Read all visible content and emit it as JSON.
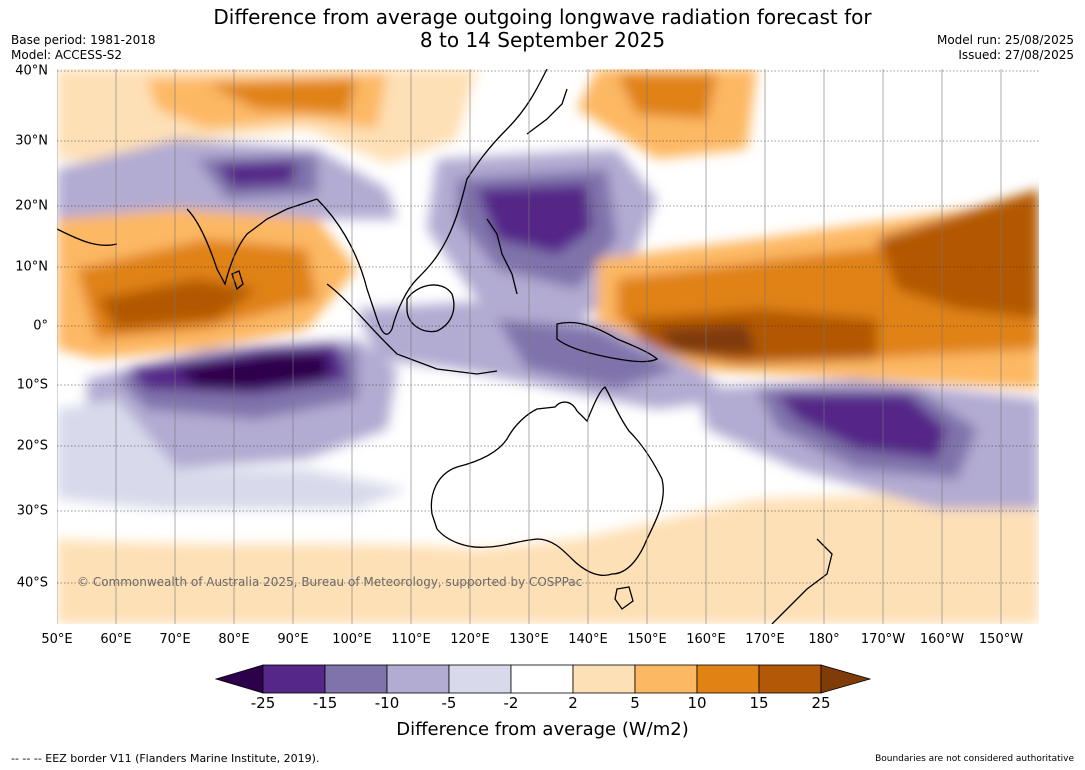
{
  "header": {
    "title_line1": "Difference from average outgoing longwave radiation forecast for",
    "title_line2": "8 to 14 September 2025",
    "base_period": "Base period: 1981-2018",
    "model": "Model: ACCESS-S2",
    "model_run": "Model run: 25/08/2025",
    "issued": "Issued: 27/08/2025"
  },
  "map": {
    "copyright": "© Commonwealth of Australia 2025, Bureau of Meteorology, supported by COSPPac",
    "x_ticks": [
      "50°E",
      "60°E",
      "70°E",
      "80°E",
      "90°E",
      "100°E",
      "110°E",
      "120°E",
      "130°E",
      "140°E",
      "150°E",
      "160°E",
      "170°E",
      "180°",
      "170°W",
      "160°W",
      "150°W"
    ],
    "y_ticks": [
      "40°N",
      "30°N",
      "20°N",
      "10°N",
      "0°",
      "10°S",
      "20°S",
      "30°S",
      "40°S"
    ]
  },
  "colorbar": {
    "labels": [
      "-25",
      "-15",
      "-10",
      "-5",
      "-2",
      "2",
      "5",
      "10",
      "15",
      "25"
    ],
    "colors": [
      "#2d004b",
      "#542788",
      "#8073ac",
      "#b2abd2",
      "#d8daeb",
      "#ffffff",
      "#fee0b6",
      "#fdb863",
      "#e08214",
      "#b35806",
      "#7f3b08"
    ],
    "title": "Difference from average (W/m2)"
  },
  "footer": {
    "eez_note": "--  --  -- EEZ border V11 (Flanders Marine Institute, 2019).",
    "disclaimer": "Boundaries are not considered authoritative"
  }
}
